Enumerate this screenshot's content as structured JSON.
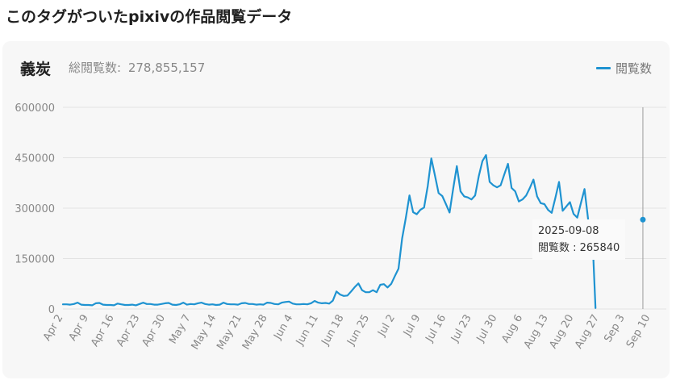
{
  "heading": "このタグがついたpixivの作品閲覧データ",
  "card": {
    "title": "義炭",
    "total_label": "総閲覧数:",
    "total_value": "278,855,157",
    "legend_label": "閲覧数"
  },
  "tooltip": {
    "date": "2025-09-08",
    "label": "閲覧数 : 265840"
  },
  "colors": {
    "line": "#1f93d1",
    "grid": "#e3e3e3",
    "axis_text": "#888888"
  },
  "chart_data": {
    "type": "line",
    "title": "",
    "xlabel": "",
    "ylabel": "",
    "ylim": [
      0,
      600000
    ],
    "yticks": [
      0,
      150000,
      300000,
      450000,
      600000
    ],
    "ytick_labels": [
      "0",
      "150000",
      "300000",
      "450000",
      "600000"
    ],
    "x_start": "2025-04-02",
    "x_end": "2025-09-10",
    "xtick_labels": [
      "Apr 2",
      "Apr 9",
      "Apr 16",
      "Apr 23",
      "Apr 30",
      "May 7",
      "May 14",
      "May 21",
      "May 28",
      "Jun 4",
      "Jun 11",
      "Jun 18",
      "Jun 25",
      "Jul 2",
      "Jul 9",
      "Jul 16",
      "Jul 23",
      "Jul 30",
      "Aug 6",
      "Aug 13",
      "Aug 20",
      "Aug 27",
      "Sep 3",
      "Sep 10"
    ],
    "highlight": {
      "date": "2025-09-08",
      "value": 265840
    },
    "series": [
      {
        "name": "閲覧数",
        "values": [
          14000,
          14000,
          13000,
          15000,
          19000,
          13000,
          12000,
          12000,
          11000,
          17000,
          18000,
          13000,
          12000,
          12000,
          11000,
          16000,
          14000,
          12000,
          12000,
          13000,
          11000,
          15000,
          19000,
          15000,
          15000,
          13000,
          13000,
          15000,
          17000,
          18000,
          13000,
          12000,
          14000,
          19000,
          13000,
          15000,
          14000,
          17000,
          19000,
          15000,
          13000,
          14000,
          12000,
          13000,
          19000,
          15000,
          14000,
          14000,
          13000,
          17000,
          18000,
          15000,
          15000,
          13000,
          14000,
          13000,
          19000,
          18000,
          15000,
          14000,
          19000,
          21000,
          22000,
          16000,
          14000,
          14000,
          15000,
          14000,
          17000,
          24000,
          19000,
          17000,
          18000,
          16000,
          25000,
          52000,
          43000,
          39000,
          40000,
          52000,
          65000,
          76000,
          56000,
          50000,
          50000,
          56000,
          50000,
          72000,
          74000,
          64000,
          75000,
          98000,
          120000,
          210000,
          270000,
          338000,
          288000,
          282000,
          295000,
          302000,
          365000,
          448000,
          397000,
          345000,
          336000,
          312000,
          287000,
          358000,
          425000,
          350000,
          335000,
          332000,
          326000,
          338000,
          395000,
          440000,
          458000,
          378000,
          368000,
          362000,
          368000,
          400000,
          432000,
          360000,
          350000,
          320000,
          326000,
          338000,
          360000,
          385000,
          335000,
          315000,
          312000,
          295000,
          286000,
          330000,
          378000,
          292000,
          305000,
          318000,
          283000,
          272000,
          315000,
          357000,
          265840,
          255000,
          3000
        ]
      }
    ]
  }
}
